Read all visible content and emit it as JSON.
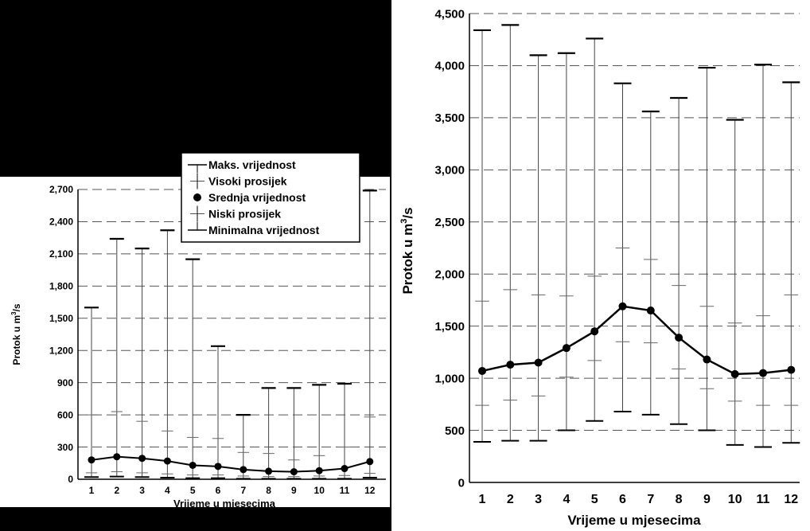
{
  "chart_data": [
    {
      "type": "scatter",
      "subtype": "boxplot-range",
      "xlabel": "Vrijeme u mjesecima",
      "ylabel": "Protok u m³/s",
      "ylabel_parts": {
        "text": "Protok u m",
        "sup": "3",
        "tail": "/s"
      },
      "x": [
        1,
        2,
        3,
        4,
        5,
        6,
        7,
        8,
        9,
        10,
        11,
        12
      ],
      "xticks": [
        "1",
        "2",
        "3",
        "4",
        "5",
        "6",
        "7",
        "8",
        "9",
        "10",
        "11",
        "12"
      ],
      "ylim": [
        0,
        2700
      ],
      "yticks": [
        "0",
        "300",
        "600",
        "900",
        "1,200",
        "1,500",
        "1,800",
        "2,100",
        "2,400",
        "2,700"
      ],
      "grid": "horizontal dashed",
      "legend_placement": "top-right",
      "legend": [
        "Maks. vrijednost",
        "Visoki prosijek",
        "Srednja vrijednost",
        "Niski prosijek",
        "Minimalna vrijednost"
      ],
      "series": [
        {
          "name": "Maks. vrijednost",
          "values": [
            1600,
            2240,
            2150,
            2320,
            2050,
            1240,
            600,
            850,
            850,
            880,
            890,
            2690
          ]
        },
        {
          "name": "Visoki prosijek",
          "values": [
            600,
            630,
            540,
            450,
            390,
            380,
            250,
            240,
            180,
            220,
            300,
            580
          ]
        },
        {
          "name": "Srednja vrijednost",
          "values": [
            180,
            210,
            195,
            170,
            130,
            120,
            90,
            75,
            70,
            80,
            100,
            165
          ]
        },
        {
          "name": "Niski prosijek",
          "values": [
            60,
            70,
            60,
            50,
            40,
            40,
            30,
            25,
            25,
            30,
            35,
            55
          ]
        },
        {
          "name": "Minimalna vrijednost",
          "values": [
            20,
            25,
            20,
            15,
            10,
            10,
            5,
            5,
            5,
            5,
            5,
            15
          ]
        }
      ]
    },
    {
      "type": "scatter",
      "subtype": "boxplot-range",
      "xlabel": "Vrijeme u mjesecima",
      "ylabel": "Protok u m³/s",
      "ylabel_parts": {
        "text": "Protok u m",
        "sup": "3",
        "tail": "/s"
      },
      "x": [
        1,
        2,
        3,
        4,
        5,
        6,
        7,
        8,
        9,
        10,
        11,
        12
      ],
      "xticks": [
        "1",
        "2",
        "3",
        "4",
        "5",
        "6",
        "7",
        "8",
        "9",
        "10",
        "11",
        "12"
      ],
      "ylim": [
        0,
        4500
      ],
      "yticks": [
        "0",
        "500",
        "1,000",
        "1,500",
        "2,000",
        "2,500",
        "3,000",
        "3,500",
        "4,000",
        "4,500"
      ],
      "grid": "horizontal dashed",
      "series": [
        {
          "name": "Maks. vrijednost",
          "values": [
            4340,
            4390,
            4100,
            4120,
            4260,
            3830,
            3560,
            3690,
            3980,
            3480,
            4010,
            3840
          ]
        },
        {
          "name": "Visoki prosijek",
          "values": [
            1740,
            1850,
            1800,
            1790,
            1980,
            2250,
            2140,
            1890,
            1690,
            1530,
            1600,
            1800
          ]
        },
        {
          "name": "Srednja vrijednost",
          "values": [
            1070,
            1130,
            1150,
            1290,
            1450,
            1690,
            1650,
            1390,
            1180,
            1040,
            1050,
            1080
          ]
        },
        {
          "name": "Niski prosijek",
          "values": [
            740,
            790,
            830,
            1010,
            1170,
            1350,
            1340,
            1090,
            900,
            780,
            740,
            740
          ]
        },
        {
          "name": "Minimalna vrijednost",
          "values": [
            390,
            400,
            400,
            500,
            590,
            680,
            650,
            560,
            500,
            360,
            340,
            380
          ]
        }
      ]
    }
  ]
}
